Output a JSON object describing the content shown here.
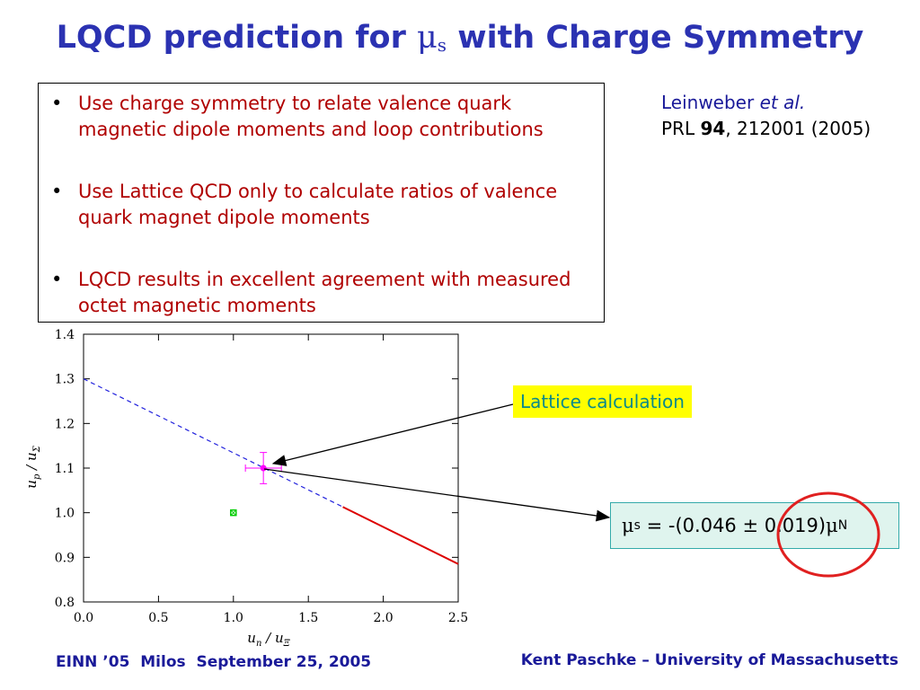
{
  "slide": {
    "title_pre": "LQCD prediction for ",
    "title_mu": "μ",
    "title_sub": "s",
    "title_post": " with Charge Symmetry"
  },
  "bullets": [
    {
      "text": "Use charge symmetry to relate valence quark magnetic dipole moments and loop contributions"
    },
    {
      "text": "Use Lattice QCD only to calculate ratios of valence quark magnet dipole moments"
    },
    {
      "text": "LQCD results in excellent agreement with measured octet magnetic moments"
    }
  ],
  "bullet_glyph": "•",
  "reference": {
    "author": "Leinweber",
    "etal": "et al.",
    "journal": "PRL ",
    "volume": "94",
    "rest": ", 212001 (2005)"
  },
  "annotations": {
    "lattice_label": "Lattice calculation",
    "result_mu": "μ",
    "result_s": "s",
    "result_eq": " = -(0.046 ",
    "result_pm": "±",
    "result_val": " 0.019)",
    "result_mu2": "μ",
    "result_N": "N"
  },
  "colors": {
    "title": "#2b32b2",
    "bullet_text": "#b00000",
    "dashed_line": "#2222dd",
    "solid_line": "#dd0000",
    "lattice_point": "#ff00ff",
    "other_point": "#00cc00",
    "highlight": "#e02020",
    "label_bg": "#ffff00",
    "result_bg": "#dff4ee"
  },
  "chart_data": {
    "type": "line",
    "xlabel_main": "u",
    "xlabel_sub1": "n",
    "xlabel_sep": " / ",
    "xlabel_main2": "u",
    "xlabel_sub2": "Ξ",
    "ylabel_main": "u",
    "ylabel_sub1": "p",
    "ylabel_sep": " / ",
    "ylabel_main2": "u",
    "ylabel_sub2": "Σ",
    "xlim": [
      0.0,
      2.5
    ],
    "ylim": [
      0.8,
      1.4
    ],
    "xticks": [
      "0.0",
      "0.5",
      "1.0",
      "1.5",
      "2.0",
      "2.5"
    ],
    "yticks": [
      "0.8",
      "0.9",
      "1.0",
      "1.1",
      "1.2",
      "1.3",
      "1.4"
    ],
    "series": [
      {
        "style": "dashed",
        "x": [
          0.0,
          1.73
        ],
        "y": [
          1.3,
          1.013
        ]
      },
      {
        "style": "solid",
        "x": [
          1.73,
          2.5
        ],
        "y": [
          1.013,
          0.885
        ]
      }
    ],
    "points": [
      {
        "x": 1.2,
        "y": 1.1,
        "xerr": 0.12,
        "yerr": 0.035,
        "marker": "lattice"
      },
      {
        "x": 1.0,
        "y": 1.0,
        "marker": "other"
      }
    ]
  },
  "footer": {
    "left": "EINN ’05  Milos  September 25, 2005",
    "right": "Kent Paschke – University of Massachusetts"
  }
}
